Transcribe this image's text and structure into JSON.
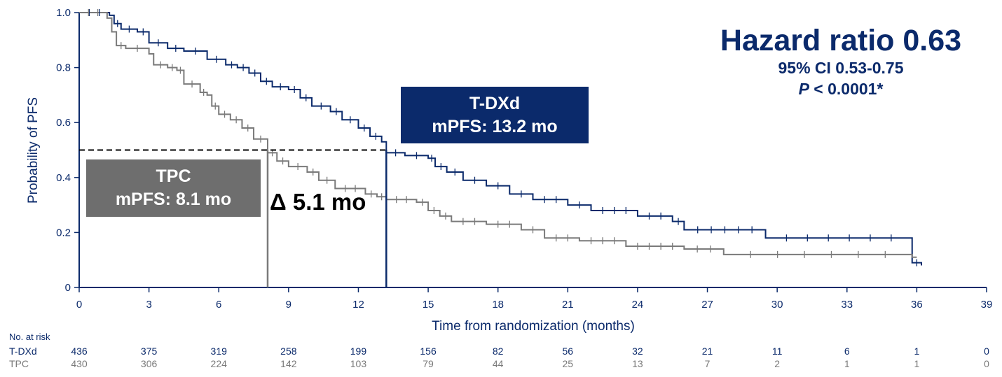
{
  "chart_data": {
    "type": "line",
    "title": "",
    "xlabel": "Time from randomization (months)",
    "ylabel": "Probability of PFS",
    "xlim": [
      0,
      39
    ],
    "ylim": [
      0,
      1.0
    ],
    "x_ticks": [
      0,
      3,
      6,
      9,
      12,
      15,
      18,
      21,
      24,
      27,
      30,
      33,
      36,
      39
    ],
    "y_ticks": [
      "0",
      "0.2",
      "0.4",
      "0.6",
      "0.8",
      "1.0"
    ],
    "y_tick_values": [
      0,
      0.2,
      0.4,
      0.6,
      0.8,
      1.0
    ],
    "grid": false,
    "series": [
      {
        "name": "T-DXd",
        "color": "#0b2a6b",
        "steps": [
          [
            0,
            1.0
          ],
          [
            1.3,
            0.99
          ],
          [
            1.5,
            0.96
          ],
          [
            1.8,
            0.94
          ],
          [
            2.5,
            0.93
          ],
          [
            3.0,
            0.89
          ],
          [
            3.8,
            0.87
          ],
          [
            4.5,
            0.86
          ],
          [
            5.5,
            0.83
          ],
          [
            6.3,
            0.81
          ],
          [
            6.8,
            0.8
          ],
          [
            7.3,
            0.78
          ],
          [
            7.8,
            0.75
          ],
          [
            8.3,
            0.73
          ],
          [
            9.0,
            0.72
          ],
          [
            9.5,
            0.69
          ],
          [
            10.0,
            0.66
          ],
          [
            10.8,
            0.64
          ],
          [
            11.3,
            0.61
          ],
          [
            12.0,
            0.58
          ],
          [
            12.5,
            0.55
          ],
          [
            13.0,
            0.53
          ],
          [
            13.2,
            0.49
          ],
          [
            14.0,
            0.48
          ],
          [
            15.0,
            0.47
          ],
          [
            15.3,
            0.44
          ],
          [
            15.8,
            0.42
          ],
          [
            16.5,
            0.39
          ],
          [
            17.5,
            0.37
          ],
          [
            18.5,
            0.34
          ],
          [
            19.5,
            0.32
          ],
          [
            21.0,
            0.3
          ],
          [
            22.0,
            0.28
          ],
          [
            24.0,
            0.26
          ],
          [
            25.5,
            0.24
          ],
          [
            26.0,
            0.21
          ],
          [
            29.5,
            0.18
          ],
          [
            35.8,
            0.09
          ],
          [
            36.2,
            0.08
          ]
        ],
        "median_months": 13.2
      },
      {
        "name": "TPC",
        "color": "#7a7a7a",
        "steps": [
          [
            0,
            1.0
          ],
          [
            1.2,
            0.98
          ],
          [
            1.4,
            0.93
          ],
          [
            1.6,
            0.88
          ],
          [
            2.0,
            0.87
          ],
          [
            3.0,
            0.85
          ],
          [
            3.2,
            0.81
          ],
          [
            3.8,
            0.8
          ],
          [
            4.2,
            0.79
          ],
          [
            4.5,
            0.74
          ],
          [
            5.2,
            0.71
          ],
          [
            5.5,
            0.7
          ],
          [
            5.7,
            0.66
          ],
          [
            6.0,
            0.63
          ],
          [
            6.5,
            0.61
          ],
          [
            7.0,
            0.58
          ],
          [
            7.5,
            0.54
          ],
          [
            8.1,
            0.49
          ],
          [
            8.5,
            0.46
          ],
          [
            9.0,
            0.44
          ],
          [
            9.8,
            0.42
          ],
          [
            10.3,
            0.39
          ],
          [
            11.0,
            0.36
          ],
          [
            12.3,
            0.34
          ],
          [
            12.8,
            0.33
          ],
          [
            13.2,
            0.32
          ],
          [
            14.5,
            0.31
          ],
          [
            15.0,
            0.28
          ],
          [
            15.5,
            0.26
          ],
          [
            16.0,
            0.24
          ],
          [
            17.5,
            0.23
          ],
          [
            19.0,
            0.21
          ],
          [
            20.0,
            0.18
          ],
          [
            21.5,
            0.17
          ],
          [
            23.5,
            0.15
          ],
          [
            26.0,
            0.14
          ],
          [
            27.7,
            0.12
          ],
          [
            35.8,
            0.11
          ]
        ],
        "median_months": 8.1
      }
    ],
    "median_reference_y": 0.5,
    "annotations": {
      "hazard_title": "Hazard ratio 0.63",
      "ci_text": "95% CI 0.53-0.75",
      "p_symbol": "P",
      "p_rest": " < 0.0001*",
      "tdxd_box_line1": "T-DXd",
      "tdxd_box_line2": "mPFS: 13.2 mo",
      "tpc_box_line1": "TPC",
      "tpc_box_line2": "mPFS: 8.1 mo",
      "delta": "Δ 5.1 mo"
    },
    "risk_table": {
      "title": "No. at risk",
      "times": [
        0,
        3,
        6,
        9,
        12,
        15,
        18,
        21,
        24,
        27,
        30,
        33,
        36,
        39
      ],
      "rows": [
        {
          "label": "T-DXd",
          "color": "#0b2a6b",
          "values": [
            "436",
            "375",
            "319",
            "258",
            "199",
            "156",
            "82",
            "56",
            "32",
            "21",
            "11",
            "6",
            "1",
            "0"
          ]
        },
        {
          "label": "TPC",
          "color": "#7a7a7a",
          "values": [
            "430",
            "306",
            "224",
            "142",
            "103",
            "79",
            "44",
            "25",
            "13",
            "7",
            "2",
            "1",
            "1",
            "0"
          ]
        }
      ]
    }
  }
}
